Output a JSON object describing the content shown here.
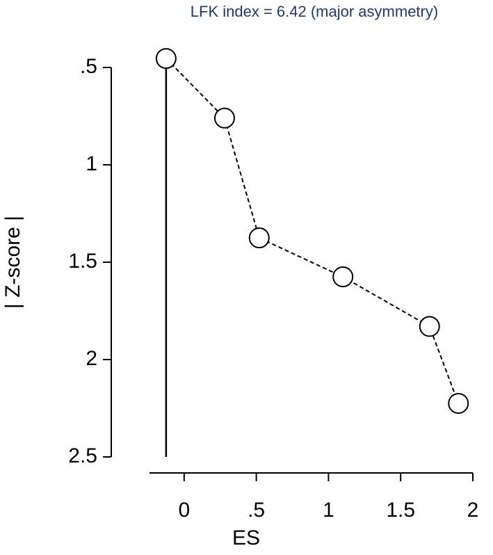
{
  "chart_data": {
    "type": "line",
    "markers": true,
    "color": "#000000",
    "marker_fill": "#ffffff",
    "annotation": "LFK index = 6.42 (major asymmetry)",
    "annotation_color": "#1f3a6e",
    "xlabel": "ES",
    "ylabel": "| Z-score |",
    "x": [
      -0.125,
      0.28,
      0.52,
      1.1,
      1.7,
      1.9
    ],
    "values": [
      0.454,
      0.76,
      1.375,
      1.575,
      1.83,
      2.225
    ],
    "xlim": [
      -0.24,
      2
    ],
    "xticks": [
      0,
      {
        "value": 0.5,
        "label": ".5"
      },
      1,
      1.5,
      2
    ],
    "ylim": [
      2.5,
      0.5
    ],
    "yticks": [
      {
        "value": 0.5,
        "label": ".5"
      },
      1,
      1.5,
      2,
      2.5
    ],
    "y_inverted": true
  }
}
